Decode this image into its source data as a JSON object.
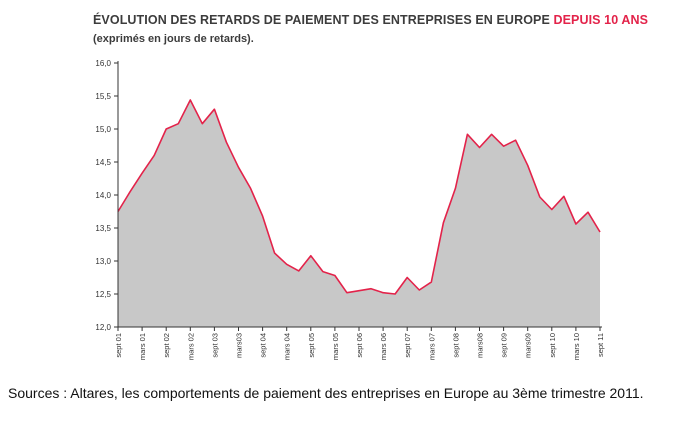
{
  "header": {
    "title_main": "ÉVOLUTION DES RETARDS DE PAIEMENT DES ENTREPRISES EN EUROPE",
    "title_accent": "DEPUIS 10 ANS",
    "subtitle": "(exprimés en jours de retards)."
  },
  "footer": {
    "source": "Sources : Altares, les comportements de paiement des entreprises en Europe au 3ème trimestre 2011."
  },
  "colors": {
    "area_fill": "#c8c8c8",
    "line": "#e3234a",
    "axis": "#333333",
    "accent": "#e3234a"
  },
  "chart_data": {
    "type": "area",
    "title": "ÉVOLUTION DES RETARDS DE PAIEMENT DES ENTREPRISES EN EUROPE DEPUIS 10 ANS",
    "subtitle": "(exprimés en jours de retards).",
    "xlabel": "",
    "ylabel": "",
    "ylim": [
      12.0,
      16.0
    ],
    "yticks": [
      "12,0",
      "12,5",
      "13,0",
      "13,5",
      "14,0",
      "14,5",
      "15,0",
      "15,5",
      "16,0"
    ],
    "grid": false,
    "legend": "none",
    "x_labels": [
      "sept 01",
      "mars 01",
      "sept 02",
      "mars 02",
      "sept 03",
      "mars03",
      "sept 04",
      "mars 04",
      "sept 05",
      "mars 05",
      "sept 06",
      "mars 06",
      "sept 07",
      "mars 07",
      "sept 08",
      "mars08",
      "sept 09",
      "mars09",
      "sept 10",
      "mars 10",
      "sept 11"
    ],
    "series": [
      {
        "values": [
          13.75,
          14.05,
          14.33,
          14.6,
          15.0,
          15.08,
          15.44,
          15.08,
          15.3,
          14.8,
          14.42,
          14.1,
          13.68,
          13.12,
          12.95,
          12.85,
          13.08,
          12.84,
          12.78,
          12.52,
          12.55,
          12.58,
          12.52,
          12.5,
          12.75,
          12.56,
          12.68,
          13.58,
          14.1,
          14.92,
          14.72,
          14.92,
          14.74,
          14.83,
          14.45,
          13.97,
          13.78,
          13.98,
          13.56,
          13.74,
          13.44
        ]
      }
    ]
  }
}
